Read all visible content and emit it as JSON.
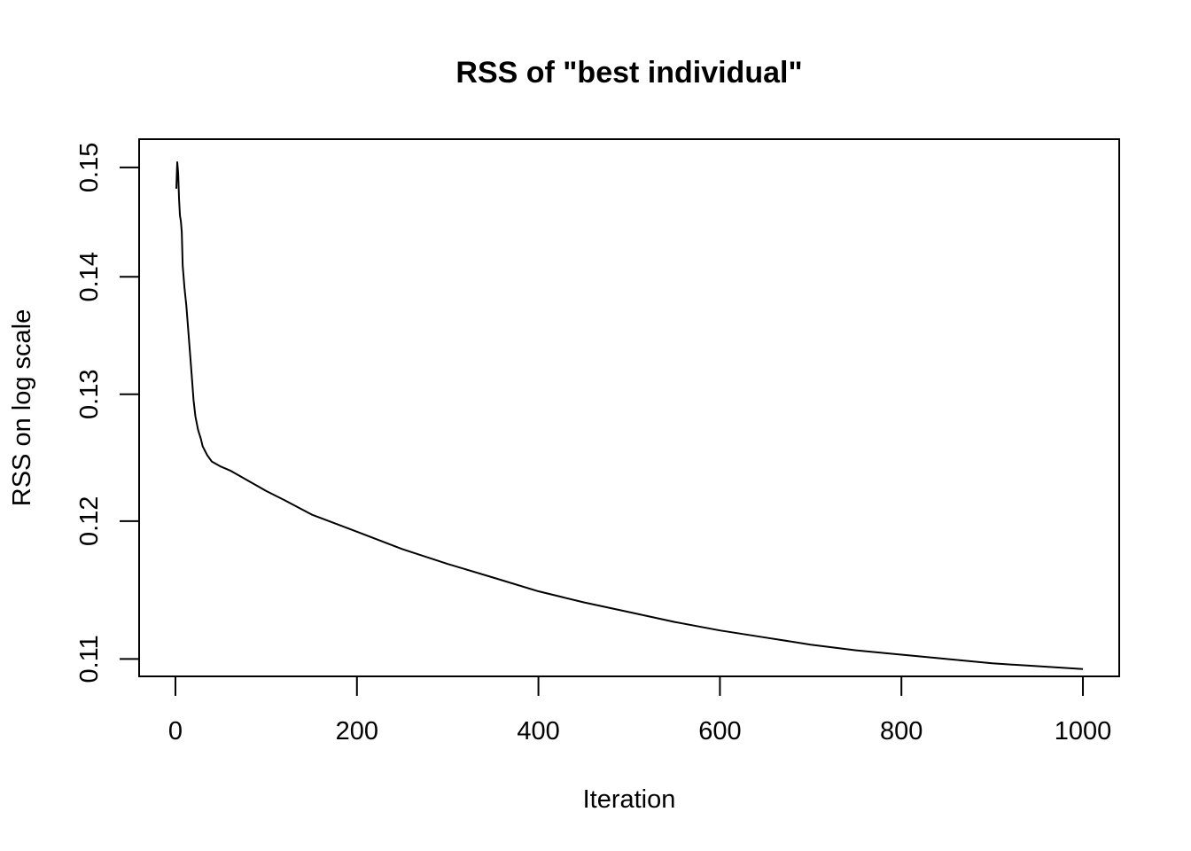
{
  "chart_data": {
    "type": "line",
    "title": "RSS of \"best individual\"",
    "xlabel": "Iteration",
    "ylabel": "RSS on log scale",
    "ylog": true,
    "xlim": [
      -40,
      1040
    ],
    "ylim": [
      0.1088,
      0.1527
    ],
    "x_ticks": [
      0,
      200,
      400,
      600,
      800,
      1000
    ],
    "x_tick_labels": [
      "0",
      "200",
      "400",
      "600",
      "800",
      "1000"
    ],
    "y_ticks": [
      0.11,
      0.12,
      0.13,
      0.14,
      0.15
    ],
    "y_tick_labels": [
      "0.11",
      "0.12",
      "0.13",
      "0.14",
      "0.15"
    ],
    "grid": false,
    "series": [
      {
        "x": [
          1,
          2,
          3,
          4,
          5,
          6,
          7,
          8,
          10,
          12,
          15,
          18,
          20,
          22,
          25,
          28,
          30,
          35,
          40,
          50,
          60,
          70,
          80,
          90,
          100,
          120,
          150,
          200,
          250,
          300,
          350,
          400,
          450,
          500,
          550,
          600,
          650,
          700,
          750,
          800,
          850,
          900,
          950,
          1000
        ],
        "y": [
          0.148,
          0.1505,
          0.1495,
          0.147,
          0.1455,
          0.145,
          0.144,
          0.141,
          0.139,
          0.1375,
          0.1345,
          0.1315,
          0.1295,
          0.1282,
          0.1271,
          0.1264,
          0.1258,
          0.1251,
          0.1246,
          0.1242,
          0.1239,
          0.1235,
          0.1231,
          0.1227,
          0.1223,
          0.1216,
          0.1205,
          0.1192,
          0.1179,
          0.1168,
          0.1158,
          0.1148,
          0.114,
          0.1133,
          0.1126,
          0.112,
          0.1115,
          0.111,
          0.1106,
          0.1103,
          0.11,
          0.1097,
          0.1095,
          0.1093
        ]
      }
    ]
  }
}
